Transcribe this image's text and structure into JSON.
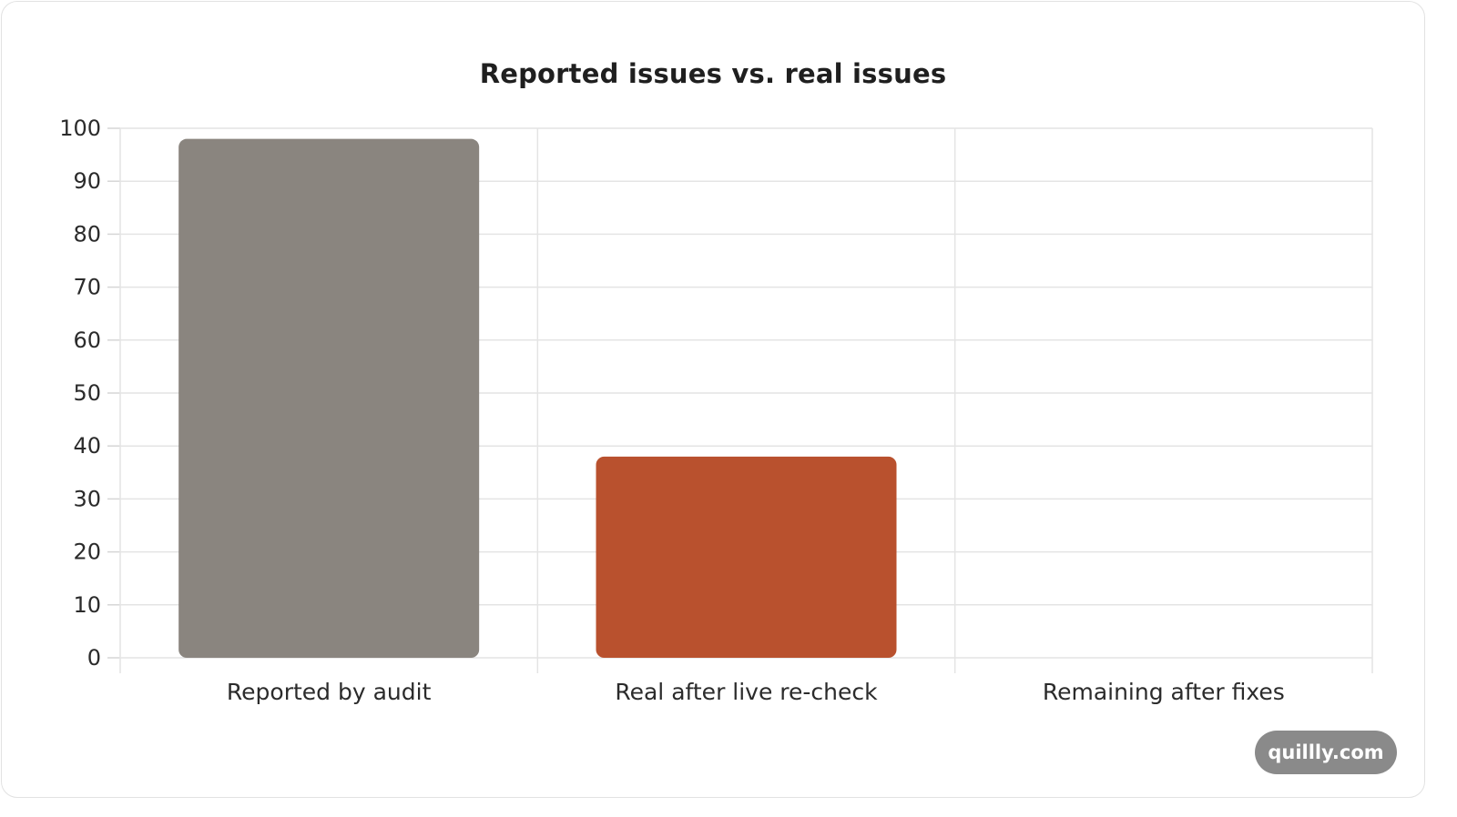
{
  "chart_data": {
    "type": "bar",
    "title": "Reported issues vs. real issues",
    "xlabel": "",
    "ylabel": "",
    "categories": [
      "Reported by audit",
      "Real after live re-check",
      "Remaining after fixes"
    ],
    "values": [
      98,
      38,
      0
    ],
    "colors": [
      "#8a857f",
      "#b9512e",
      "#b9512e"
    ],
    "ylim": [
      0,
      100
    ],
    "yticks": [
      0,
      10,
      20,
      30,
      40,
      50,
      60,
      70,
      80,
      90,
      100
    ],
    "grid": true,
    "legend": "none"
  },
  "watermark": {
    "text": "quillly.com",
    "color": "#8a8a8a"
  }
}
